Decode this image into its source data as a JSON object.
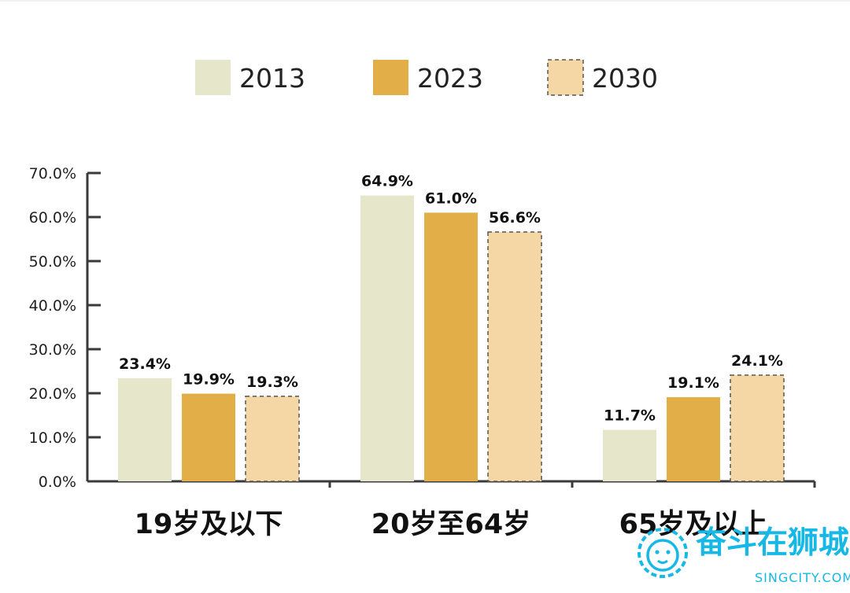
{
  "chart_data": {
    "type": "bar",
    "categories": [
      "19岁及以下",
      "20岁至64岁",
      "65岁及以上"
    ],
    "series": [
      {
        "name": "2013",
        "values": [
          23.4,
          64.9,
          11.7
        ],
        "labels": [
          "23.4%",
          "64.9%",
          "11.7%"
        ],
        "color": "#e6e6ca",
        "dashed": false
      },
      {
        "name": "2023",
        "values": [
          19.9,
          61.0,
          19.1
        ],
        "labels": [
          "19.9%",
          "61.0%",
          "19.1%"
        ],
        "color": "#e2ae48",
        "dashed": false
      },
      {
        "name": "2030",
        "values": [
          19.3,
          56.6,
          24.1
        ],
        "labels": [
          "19.3%",
          "56.6%",
          "24.1%"
        ],
        "color": "#f5d6a5",
        "dashed": true
      }
    ],
    "ylim": [
      0,
      70
    ],
    "yticks": [
      "0.0%",
      "10.0%",
      "20.0%",
      "30.0%",
      "40.0%",
      "50.0%",
      "60.0%",
      "70.0%"
    ],
    "grid": false,
    "legend_position": "top"
  },
  "watermark": {
    "brand": "奋斗在狮城",
    "site": "SINGCITY.COM",
    "logo_icon": "lion-icon"
  }
}
